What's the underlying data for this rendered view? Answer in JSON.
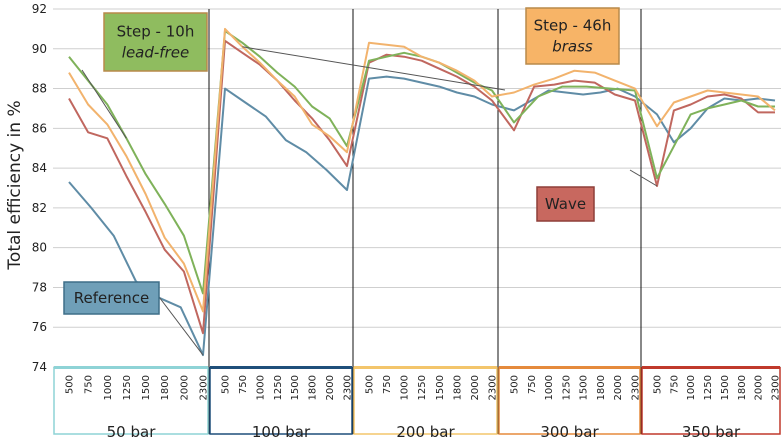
{
  "chart_data": {
    "type": "line",
    "ylabel": "Total efficiency in %",
    "xlabel": "",
    "ylim": [
      74,
      92
    ],
    "yticks": [
      74,
      76,
      78,
      80,
      82,
      84,
      86,
      88,
      90,
      92
    ],
    "grid": "horizontal",
    "speeds": [
      "500",
      "750",
      "1000",
      "1250",
      "1500",
      "1800",
      "2000",
      "2300"
    ],
    "groups": [
      {
        "label": "50 bar",
        "color": "#8ed3d6"
      },
      {
        "label": "100 bar",
        "color": "#1f4f7a"
      },
      {
        "label": "200 bar",
        "color": "#f3c56b"
      },
      {
        "label": "300 bar",
        "color": "#e58a3c"
      },
      {
        "label": "350 bar",
        "color": "#c0392b"
      }
    ],
    "series": [
      {
        "key": "reference",
        "color": "#5f8ca6",
        "values": [
          83.3,
          82.0,
          80.6,
          78.3,
          77.5,
          77.0,
          74.6,
          88.0,
          87.3,
          86.6,
          85.4,
          84.8,
          83.9,
          82.9,
          88.5,
          88.6,
          88.5,
          88.3,
          88.1,
          87.8,
          87.6,
          87.2,
          86.9,
          87.4,
          87.9,
          87.8,
          87.7,
          87.8,
          88.0,
          87.6,
          86.7,
          85.3,
          86.0,
          87.0,
          87.5,
          87.4,
          87.5,
          87.4
        ]
      },
      {
        "key": "wave",
        "color": "#c0675f",
        "values": [
          87.5,
          85.8,
          85.5,
          83.6,
          81.8,
          79.9,
          78.8,
          75.7,
          90.4,
          89.8,
          89.2,
          88.4,
          87.4,
          86.5,
          85.4,
          84.1,
          89.3,
          89.7,
          89.6,
          89.4,
          89.0,
          88.6,
          88.1,
          87.4,
          85.9,
          88.1,
          88.2,
          88.4,
          88.3,
          87.7,
          87.4,
          83.1,
          86.9,
          87.2,
          87.6,
          87.7,
          87.5,
          86.8,
          86.8
        ]
      },
      {
        "key": "step-10h",
        "color": "#7fb25a",
        "values": [
          89.6,
          88.4,
          87.2,
          85.5,
          83.7,
          82.2,
          80.6,
          77.7,
          90.9,
          90.3,
          89.6,
          88.8,
          88.1,
          87.1,
          86.5,
          85.1,
          89.4,
          89.6,
          89.8,
          89.6,
          89.3,
          88.8,
          88.3,
          87.9,
          86.3,
          87.6,
          88.1,
          88.1,
          88.0,
          87.9,
          83.5,
          85.1,
          86.7,
          87.0,
          87.2,
          87.4,
          87.1,
          87.1
        ]
      },
      {
        "key": "step-46h",
        "color": "#f2b36d",
        "values": [
          88.8,
          87.2,
          86.2,
          84.6,
          82.7,
          80.5,
          79.2,
          76.8,
          91.0,
          90.1,
          89.3,
          88.4,
          87.6,
          86.2,
          85.6,
          84.8,
          90.3,
          90.2,
          90.1,
          89.6,
          89.3,
          88.9,
          88.4,
          87.6,
          87.8,
          88.2,
          88.5,
          88.9,
          88.8,
          88.4,
          88.0,
          86.1,
          87.3,
          87.6,
          87.9,
          87.8,
          87.7,
          87.6,
          86.9
        ]
      }
    ],
    "annotations": [
      {
        "series": "step-10h",
        "lines": [
          "Step - 10h",
          "lead-free"
        ],
        "fill": "#8fbc5f",
        "border": "#b88a4a"
      },
      {
        "series": "step-46h",
        "lines": [
          "Step - 46h",
          "brass"
        ],
        "fill": "#f7b467",
        "border": "#b88a4a"
      },
      {
        "series": "wave",
        "lines": [
          "Wave"
        ],
        "fill": "#c8685f",
        "border": "#8e3f39"
      },
      {
        "series": "reference",
        "lines": [
          "Reference"
        ],
        "fill": "#6f9fb8",
        "border": "#3f6f88"
      }
    ]
  }
}
